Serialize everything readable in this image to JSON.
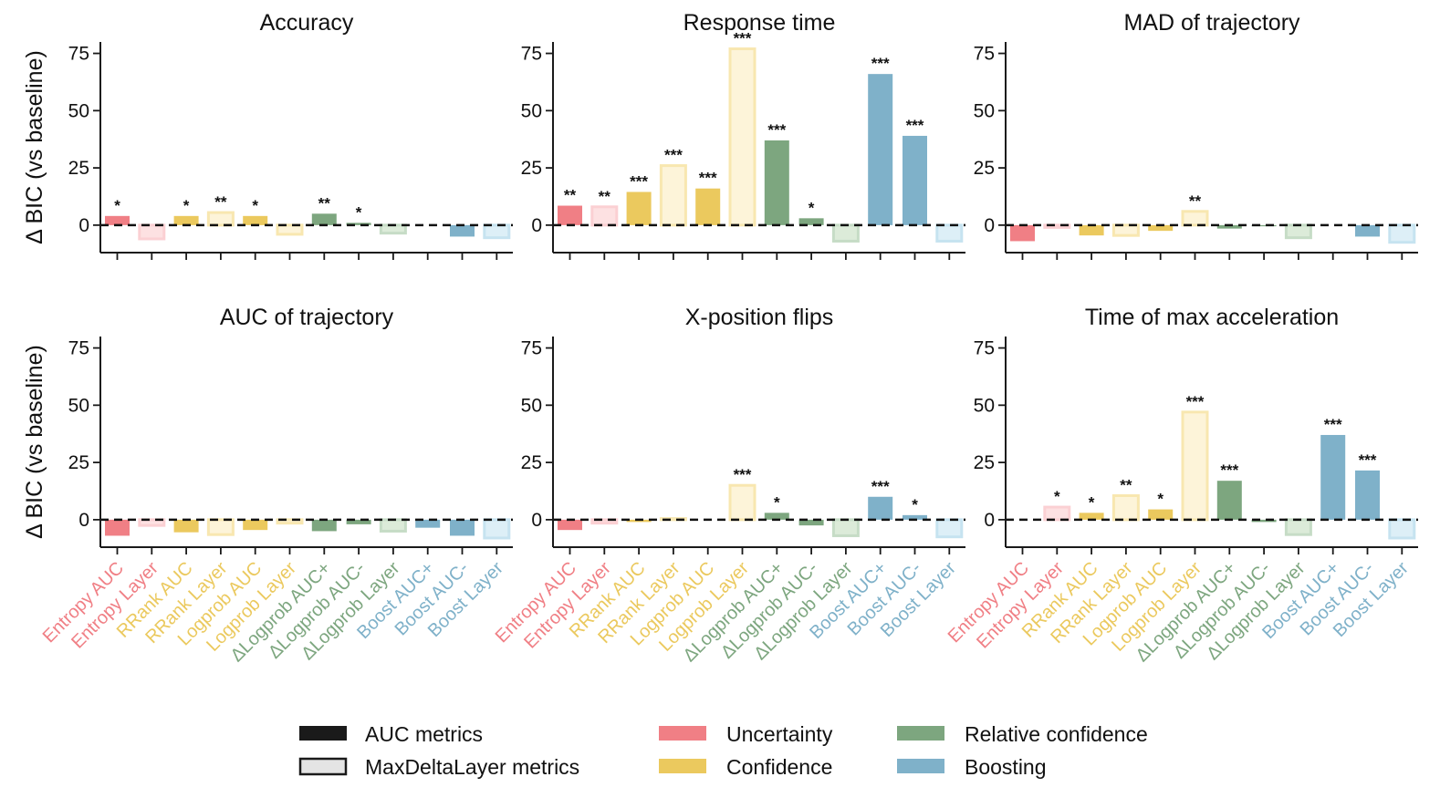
{
  "colors": {
    "uncertainty": "#f07f85",
    "confidence": "#ebc95e",
    "relative": "#7da67f",
    "boosting": "#7fb1c9",
    "uncertainty_light": "#fde1e2",
    "confidence_light": "#fdf4d9",
    "relative_light": "#dcebd9",
    "boosting_light": "#ddeff7",
    "uncertainty_edge": "#fbd0d3",
    "confidence_edge": "#f8e7b0",
    "relative_edge": "#c6dcc6",
    "boosting_edge": "#c6e3f0"
  },
  "ylabel": "Δ BIC (vs baseline)",
  "chart_data": [
    {
      "type": "bar",
      "title": "Accuracy",
      "ylabel": "Δ BIC (vs baseline)",
      "ylim": [
        -12,
        80
      ],
      "yticks": [
        "0",
        "25",
        "50",
        "75"
      ],
      "categories": [
        "Entropy AUC",
        "Entropy Layer",
        "RRank AUC",
        "RRank Layer",
        "Logprob AUC",
        "Logprob Layer",
        "ΔLogprob AUC+",
        "ΔLogprob AUC-",
        "ΔLogprob Layer",
        "Boost AUC+",
        "Boost AUC-",
        "Boost Layer"
      ],
      "groups": [
        "uncertainty",
        "uncertainty",
        "confidence",
        "confidence",
        "confidence",
        "confidence",
        "relative",
        "relative",
        "relative",
        "boosting",
        "boosting",
        "boosting"
      ],
      "kinds": [
        "auc",
        "layer",
        "auc",
        "layer",
        "auc",
        "layer",
        "auc",
        "auc",
        "layer",
        "auc",
        "auc",
        "layer"
      ],
      "values": [
        4,
        -6,
        4,
        5.5,
        4,
        -4,
        5,
        1,
        -3.5,
        0,
        -5,
        -5.5
      ],
      "significance": [
        "*",
        "",
        "*",
        "**",
        "*",
        "",
        "**",
        "*",
        "",
        "",
        "",
        ""
      ]
    },
    {
      "type": "bar",
      "title": "Response time",
      "ylabel": "",
      "ylim": [
        -12,
        80
      ],
      "yticks": [
        "0",
        "25",
        "50",
        "75"
      ],
      "categories": [
        "Entropy AUC",
        "Entropy Layer",
        "RRank AUC",
        "RRank Layer",
        "Logprob AUC",
        "Logprob Layer",
        "ΔLogprob AUC+",
        "ΔLogprob AUC-",
        "ΔLogprob Layer",
        "Boost AUC+",
        "Boost AUC-",
        "Boost Layer"
      ],
      "groups": [
        "uncertainty",
        "uncertainty",
        "confidence",
        "confidence",
        "confidence",
        "confidence",
        "relative",
        "relative",
        "relative",
        "boosting",
        "boosting",
        "boosting"
      ],
      "kinds": [
        "auc",
        "layer",
        "auc",
        "layer",
        "auc",
        "layer",
        "auc",
        "auc",
        "layer",
        "auc",
        "auc",
        "layer"
      ],
      "values": [
        8.5,
        8,
        14.5,
        26,
        16,
        77,
        37,
        3,
        -7,
        66,
        39,
        -7
      ],
      "significance": [
        "**",
        "**",
        "***",
        "***",
        "***",
        "***",
        "***",
        "*",
        "",
        "***",
        "***",
        ""
      ]
    },
    {
      "type": "bar",
      "title": "MAD of trajectory",
      "ylabel": "",
      "ylim": [
        -12,
        80
      ],
      "yticks": [
        "0",
        "25",
        "50",
        "75"
      ],
      "categories": [
        "Entropy AUC",
        "Entropy Layer",
        "RRank AUC",
        "RRank Layer",
        "Logprob AUC",
        "Logprob Layer",
        "ΔLogprob AUC+",
        "ΔLogprob AUC-",
        "ΔLogprob Layer",
        "Boost AUC+",
        "Boost AUC-",
        "Boost Layer"
      ],
      "groups": [
        "uncertainty",
        "uncertainty",
        "confidence",
        "confidence",
        "confidence",
        "confidence",
        "relative",
        "relative",
        "relative",
        "boosting",
        "boosting",
        "boosting"
      ],
      "kinds": [
        "auc",
        "layer",
        "auc",
        "layer",
        "auc",
        "layer",
        "auc",
        "auc",
        "layer",
        "auc",
        "auc",
        "layer"
      ],
      "values": [
        -7,
        -1,
        -4.5,
        -4.5,
        -2.5,
        6,
        -1.5,
        -0.5,
        -5.5,
        0,
        -5,
        -7.5
      ],
      "significance": [
        "",
        "",
        "",
        "",
        "",
        "**",
        "",
        "",
        "",
        "",
        "",
        ""
      ]
    },
    {
      "type": "bar",
      "title": "AUC of trajectory",
      "ylabel": "Δ BIC (vs baseline)",
      "ylim": [
        -12,
        80
      ],
      "yticks": [
        "0",
        "25",
        "50",
        "75"
      ],
      "categories": [
        "Entropy AUC",
        "Entropy Layer",
        "RRank AUC",
        "RRank Layer",
        "Logprob AUC",
        "Logprob Layer",
        "ΔLogprob AUC+",
        "ΔLogprob AUC-",
        "ΔLogprob Layer",
        "Boost AUC+",
        "Boost AUC-",
        "Boost Layer"
      ],
      "groups": [
        "uncertainty",
        "uncertainty",
        "confidence",
        "confidence",
        "confidence",
        "confidence",
        "relative",
        "relative",
        "relative",
        "boosting",
        "boosting",
        "boosting"
      ],
      "kinds": [
        "auc",
        "layer",
        "auc",
        "layer",
        "auc",
        "layer",
        "auc",
        "auc",
        "layer",
        "auc",
        "auc",
        "layer"
      ],
      "values": [
        -7,
        -2.5,
        -5.5,
        -6.5,
        -4.5,
        -1.5,
        -5,
        -2,
        -5,
        -3.5,
        -7,
        -8
      ],
      "significance": [
        "",
        "",
        "",
        "",
        "",
        "",
        "",
        "",
        "",
        "",
        "",
        ""
      ]
    },
    {
      "type": "bar",
      "title": "X-position flips",
      "ylabel": "",
      "ylim": [
        -12,
        80
      ],
      "yticks": [
        "0",
        "25",
        "50",
        "75"
      ],
      "categories": [
        "Entropy AUC",
        "Entropy Layer",
        "RRank AUC",
        "RRank Layer",
        "Logprob AUC",
        "Logprob Layer",
        "ΔLogprob AUC+",
        "ΔLogprob AUC-",
        "ΔLogprob Layer",
        "Boost AUC+",
        "Boost AUC-",
        "Boost Layer"
      ],
      "groups": [
        "uncertainty",
        "uncertainty",
        "confidence",
        "confidence",
        "confidence",
        "confidence",
        "relative",
        "relative",
        "relative",
        "boosting",
        "boosting",
        "boosting"
      ],
      "kinds": [
        "auc",
        "layer",
        "auc",
        "layer",
        "auc",
        "layer",
        "auc",
        "auc",
        "layer",
        "auc",
        "auc",
        "layer"
      ],
      "values": [
        -4.5,
        -1.5,
        -1,
        0.5,
        0,
        15,
        3,
        -2.5,
        -7,
        10,
        2,
        -7.5
      ],
      "significance": [
        "",
        "",
        "",
        "",
        "",
        "***",
        "*",
        "",
        "",
        "***",
        "*",
        ""
      ]
    },
    {
      "type": "bar",
      "title": "Time of max acceleration",
      "ylabel": "",
      "ylim": [
        -12,
        80
      ],
      "yticks": [
        "0",
        "25",
        "50",
        "75"
      ],
      "categories": [
        "Entropy AUC",
        "Entropy Layer",
        "RRank AUC",
        "RRank Layer",
        "Logprob AUC",
        "Logprob Layer",
        "ΔLogprob AUC+",
        "ΔLogprob AUC-",
        "ΔLogprob Layer",
        "Boost AUC+",
        "Boost AUC-",
        "Boost Layer"
      ],
      "groups": [
        "uncertainty",
        "uncertainty",
        "confidence",
        "confidence",
        "confidence",
        "confidence",
        "relative",
        "relative",
        "relative",
        "boosting",
        "boosting",
        "boosting"
      ],
      "kinds": [
        "auc",
        "layer",
        "auc",
        "layer",
        "auc",
        "layer",
        "auc",
        "auc",
        "layer",
        "auc",
        "auc",
        "layer"
      ],
      "values": [
        0,
        5.5,
        3,
        10.5,
        4.5,
        47,
        17,
        -1,
        -6.5,
        37,
        21.5,
        -8
      ],
      "significance": [
        "",
        "*",
        "*",
        "**",
        "*",
        "***",
        "***",
        "",
        "",
        "***",
        "***",
        ""
      ]
    }
  ],
  "legend": {
    "style_items": [
      {
        "label": "AUC metrics",
        "kind": "auc"
      },
      {
        "label": "MaxDeltaLayer metrics",
        "kind": "layer"
      }
    ],
    "group_items": [
      {
        "label": "Uncertainty",
        "group": "uncertainty"
      },
      {
        "label": "Confidence",
        "group": "confidence"
      },
      {
        "label": "Relative confidence",
        "group": "relative"
      },
      {
        "label": "Boosting",
        "group": "boosting"
      }
    ]
  }
}
